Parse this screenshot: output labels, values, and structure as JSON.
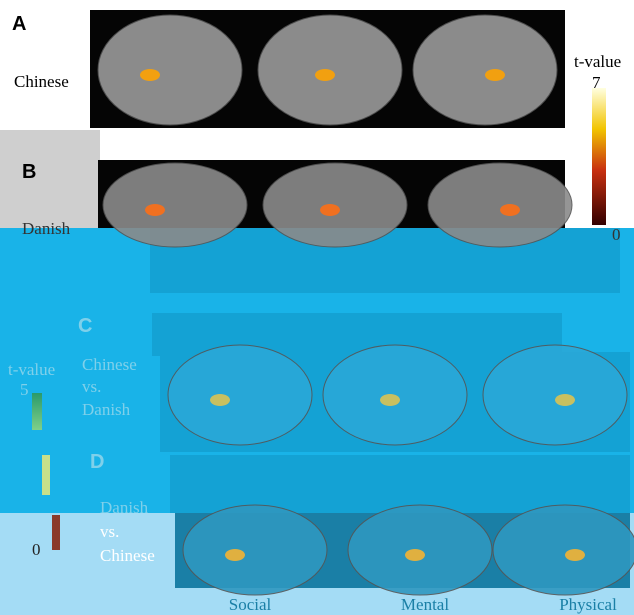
{
  "panels": [
    {
      "letter": "A",
      "row_label": [
        "Chinese"
      ]
    },
    {
      "letter": "B",
      "row_label": [
        "Danish"
      ]
    },
    {
      "letter": "C",
      "row_label": [
        "Chinese",
        "vs.",
        "Danish"
      ]
    },
    {
      "letter": "D",
      "row_label": [
        "Danish",
        "vs.",
        "Chinese"
      ]
    }
  ],
  "colorbars": [
    {
      "title": "t-value",
      "max": 7,
      "min": 0
    },
    {
      "title": "t-value",
      "max": 5,
      "min": 0
    }
  ],
  "columns": [
    "Social",
    "Mental",
    "Physical"
  ]
}
